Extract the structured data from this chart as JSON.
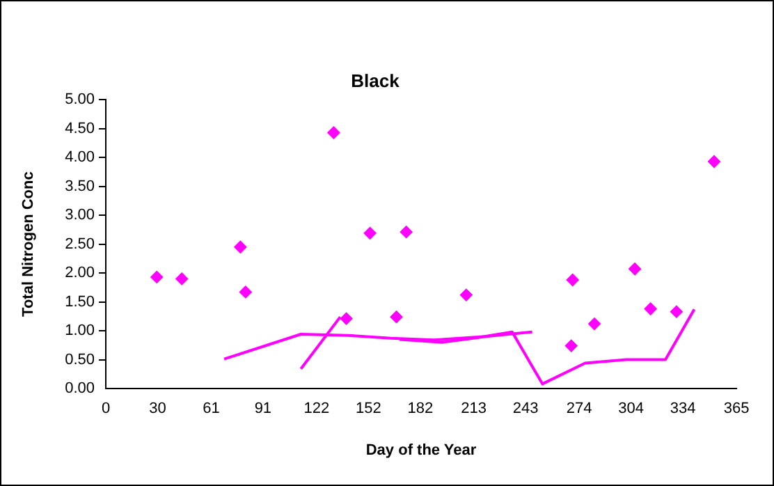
{
  "chart_data": {
    "type": "scatter",
    "title": "Black",
    "xlabel": "Day of the Year",
    "ylabel": "Total Nitrogen Conc",
    "xlim": [
      0,
      365
    ],
    "xticks": [
      0,
      30,
      61,
      91,
      122,
      152,
      182,
      213,
      243,
      274,
      304,
      334,
      365
    ],
    "ylim": [
      0,
      5
    ],
    "yticks": [
      {
        "value": 0,
        "label": "0.00"
      },
      {
        "value": 0.5,
        "label": "0.50"
      },
      {
        "value": 1,
        "label": "1.00"
      },
      {
        "value": 1.5,
        "label": "1.50"
      },
      {
        "value": 2,
        "label": "2.00"
      },
      {
        "value": 2.5,
        "label": "2.50"
      },
      {
        "value": 3,
        "label": "3.00"
      },
      {
        "value": 3.5,
        "label": "3.50"
      },
      {
        "value": 4,
        "label": "4.00"
      },
      {
        "value": 4.5,
        "label": "4.50"
      },
      {
        "value": 5,
        "label": "5.00"
      }
    ],
    "grid": false,
    "legend": false,
    "series": [
      {
        "type": "scatter",
        "marker": "diamond",
        "color": "#ff00ff",
        "x": [
          29.5,
          44,
          77.9,
          80.9,
          131.9,
          139.2,
          152.9,
          168.2,
          173.9,
          208.6,
          270.2,
          269.4,
          282.8,
          306.2,
          315.3,
          330.3,
          352.1
        ],
        "values": [
          1.93,
          1.9,
          2.45,
          1.67,
          4.43,
          1.21,
          2.69,
          1.24,
          2.71,
          1.62,
          1.88,
          0.74,
          1.12,
          2.07,
          1.38,
          1.33,
          3.93
        ]
      },
      {
        "type": "line",
        "marker": "none",
        "color": "#ff00ff",
        "x": [
          68.5,
          112.9,
          140,
          165,
          190,
          220,
          246.8
        ],
        "values": [
          0.51,
          0.94,
          0.92,
          0.87,
          0.84,
          0.9,
          0.98
        ]
      },
      {
        "type": "line",
        "marker": "none",
        "color": "#ff00ff",
        "x": [
          112.9,
          135.7
        ],
        "values": [
          0.34,
          1.24
        ]
      },
      {
        "type": "line",
        "marker": "none",
        "color": "#ff00ff",
        "x": [
          170,
          195,
          215,
          235.2,
          252.7,
          277.4,
          301.1,
          323.9,
          340.6
        ],
        "values": [
          0.85,
          0.8,
          0.88,
          0.98,
          0.08,
          0.44,
          0.5,
          0.5,
          1.37
        ]
      }
    ]
  }
}
